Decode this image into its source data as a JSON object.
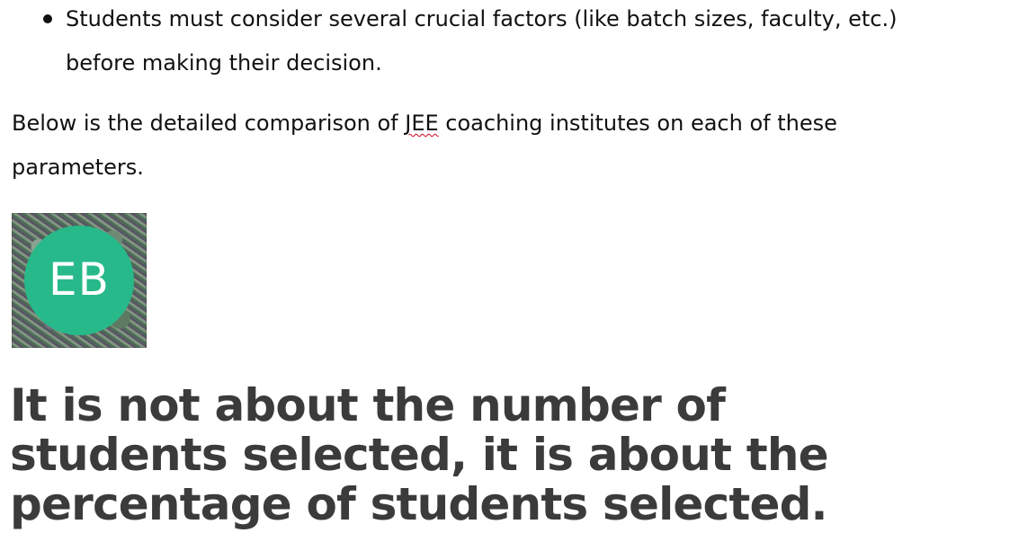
{
  "content": {
    "bullet_items": [
      {
        "text": "Students must consider several crucial factors (like batch sizes, faculty, etc.) before making their decision."
      }
    ],
    "paragraph": {
      "before_underline": "Below is the detailed comparison of ",
      "underlined_word": "JEE",
      "after_underline": " coaching institutes on each of these parameters."
    },
    "avatar": {
      "initials": "EB",
      "accent_color": "#27b98a"
    },
    "headline": "It is not about the number of students selected, it is about the percentage of students selected."
  }
}
